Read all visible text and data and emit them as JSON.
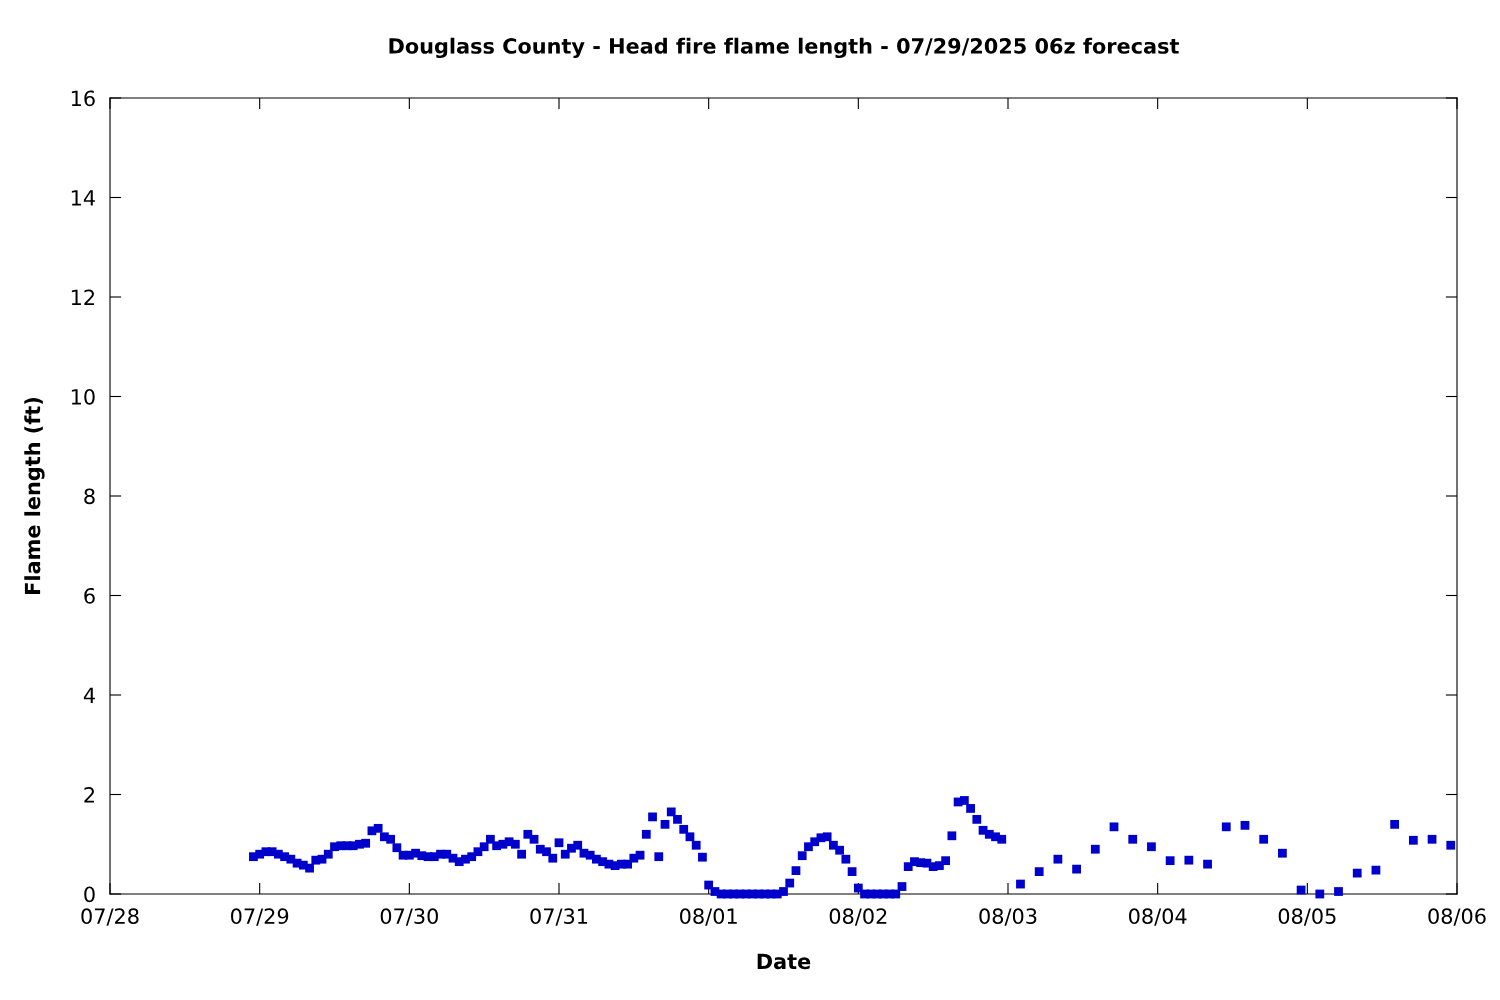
{
  "chart_data": {
    "type": "scatter",
    "title": "Douglass County - Head fire flame length - 07/29/2025 06z forecast",
    "xlabel": "Date",
    "ylabel": "Flame length (ft)",
    "marker": "square",
    "grid": false,
    "legend": false,
    "xlim": [
      "2025-07-28",
      "2025-08-06"
    ],
    "ylim": [
      0,
      16
    ],
    "xticks": [
      {
        "value": "2025-07-28",
        "label": "07/28"
      },
      {
        "value": "2025-07-29",
        "label": "07/29"
      },
      {
        "value": "2025-07-30",
        "label": "07/30"
      },
      {
        "value": "2025-07-31",
        "label": "07/31"
      },
      {
        "value": "2025-08-01",
        "label": "08/01"
      },
      {
        "value": "2025-08-02",
        "label": "08/02"
      },
      {
        "value": "2025-08-03",
        "label": "08/03"
      },
      {
        "value": "2025-08-04",
        "label": "08/04"
      },
      {
        "value": "2025-08-05",
        "label": "08/05"
      },
      {
        "value": "2025-08-06",
        "label": "08/06"
      }
    ],
    "yticks": [
      0,
      2,
      4,
      6,
      8,
      10,
      12,
      14,
      16
    ],
    "series": [
      {
        "color": "#0000cc",
        "x": [
          "2025-07-28T23:00",
          "2025-07-29T00:00",
          "2025-07-29T01:00",
          "2025-07-29T02:00",
          "2025-07-29T03:00",
          "2025-07-29T04:00",
          "2025-07-29T05:00",
          "2025-07-29T06:00",
          "2025-07-29T07:00",
          "2025-07-29T08:00",
          "2025-07-29T09:00",
          "2025-07-29T10:00",
          "2025-07-29T11:00",
          "2025-07-29T12:00",
          "2025-07-29T13:00",
          "2025-07-29T14:00",
          "2025-07-29T15:00",
          "2025-07-29T16:00",
          "2025-07-29T17:00",
          "2025-07-29T18:00",
          "2025-07-29T19:00",
          "2025-07-29T20:00",
          "2025-07-29T21:00",
          "2025-07-29T22:00",
          "2025-07-29T23:00",
          "2025-07-30T00:00",
          "2025-07-30T01:00",
          "2025-07-30T02:00",
          "2025-07-30T03:00",
          "2025-07-30T04:00",
          "2025-07-30T05:00",
          "2025-07-30T06:00",
          "2025-07-30T07:00",
          "2025-07-30T08:00",
          "2025-07-30T09:00",
          "2025-07-30T10:00",
          "2025-07-30T11:00",
          "2025-07-30T12:00",
          "2025-07-30T13:00",
          "2025-07-30T14:00",
          "2025-07-30T15:00",
          "2025-07-30T16:00",
          "2025-07-30T17:00",
          "2025-07-30T18:00",
          "2025-07-30T19:00",
          "2025-07-30T20:00",
          "2025-07-30T21:00",
          "2025-07-30T22:00",
          "2025-07-30T23:00",
          "2025-07-31T00:00",
          "2025-07-31T01:00",
          "2025-07-31T02:00",
          "2025-07-31T03:00",
          "2025-07-31T04:00",
          "2025-07-31T05:00",
          "2025-07-31T06:00",
          "2025-07-31T07:00",
          "2025-07-31T08:00",
          "2025-07-31T09:00",
          "2025-07-31T10:00",
          "2025-07-31T11:00",
          "2025-07-31T12:00",
          "2025-07-31T13:00",
          "2025-07-31T14:00",
          "2025-07-31T15:00",
          "2025-07-31T16:00",
          "2025-07-31T17:00",
          "2025-07-31T18:00",
          "2025-07-31T19:00",
          "2025-07-31T20:00",
          "2025-07-31T21:00",
          "2025-07-31T22:00",
          "2025-07-31T23:00",
          "2025-08-01T00:00",
          "2025-08-01T01:00",
          "2025-08-01T02:00",
          "2025-08-01T03:00",
          "2025-08-01T04:00",
          "2025-08-01T05:00",
          "2025-08-01T06:00",
          "2025-08-01T07:00",
          "2025-08-01T08:00",
          "2025-08-01T09:00",
          "2025-08-01T10:00",
          "2025-08-01T11:00",
          "2025-08-01T12:00",
          "2025-08-01T13:00",
          "2025-08-01T14:00",
          "2025-08-01T15:00",
          "2025-08-01T16:00",
          "2025-08-01T17:00",
          "2025-08-01T18:00",
          "2025-08-01T19:00",
          "2025-08-01T20:00",
          "2025-08-01T21:00",
          "2025-08-01T22:00",
          "2025-08-01T23:00",
          "2025-08-02T00:00",
          "2025-08-02T01:00",
          "2025-08-02T02:00",
          "2025-08-02T03:00",
          "2025-08-02T04:00",
          "2025-08-02T05:00",
          "2025-08-02T06:00",
          "2025-08-02T07:00",
          "2025-08-02T08:00",
          "2025-08-02T09:00",
          "2025-08-02T10:00",
          "2025-08-02T11:00",
          "2025-08-02T12:00",
          "2025-08-02T13:00",
          "2025-08-02T14:00",
          "2025-08-02T15:00",
          "2025-08-02T16:00",
          "2025-08-02T17:00",
          "2025-08-02T18:00",
          "2025-08-02T19:00",
          "2025-08-02T20:00",
          "2025-08-02T21:00",
          "2025-08-02T22:00",
          "2025-08-02T23:00",
          "2025-08-03T02:00",
          "2025-08-03T05:00",
          "2025-08-03T08:00",
          "2025-08-03T11:00",
          "2025-08-03T14:00",
          "2025-08-03T17:00",
          "2025-08-03T20:00",
          "2025-08-03T23:00",
          "2025-08-04T02:00",
          "2025-08-04T05:00",
          "2025-08-04T08:00",
          "2025-08-04T11:00",
          "2025-08-04T14:00",
          "2025-08-04T17:00",
          "2025-08-04T20:00",
          "2025-08-04T23:00",
          "2025-08-05T02:00",
          "2025-08-05T05:00",
          "2025-08-05T08:00",
          "2025-08-05T11:00",
          "2025-08-05T14:00",
          "2025-08-05T17:00",
          "2025-08-05T20:00",
          "2025-08-05T23:00"
        ],
        "values": [
          0.75,
          0.8,
          0.85,
          0.85,
          0.8,
          0.75,
          0.7,
          0.62,
          0.58,
          0.52,
          0.68,
          0.7,
          0.8,
          0.95,
          0.97,
          0.97,
          0.97,
          1.0,
          1.02,
          1.27,
          1.32,
          1.15,
          1.1,
          0.93,
          0.78,
          0.78,
          0.82,
          0.77,
          0.75,
          0.75,
          0.8,
          0.8,
          0.72,
          0.65,
          0.7,
          0.75,
          0.85,
          0.95,
          1.1,
          0.97,
          1.0,
          1.05,
          1.0,
          0.8,
          1.2,
          1.1,
          0.9,
          0.85,
          0.72,
          1.03,
          0.8,
          0.92,
          0.98,
          0.82,
          0.78,
          0.7,
          0.65,
          0.6,
          0.57,
          0.6,
          0.6,
          0.72,
          0.78,
          1.2,
          1.55,
          0.75,
          1.4,
          1.65,
          1.5,
          1.3,
          1.15,
          0.98,
          0.74,
          0.18,
          0.05,
          0,
          0,
          0,
          0,
          0,
          0,
          0,
          0,
          0,
          0,
          0.05,
          0.22,
          0.47,
          0.77,
          0.95,
          1.05,
          1.13,
          1.15,
          0.98,
          0.88,
          0.7,
          0.45,
          0.12,
          0,
          0,
          0,
          0,
          0,
          0,
          0.15,
          0.55,
          0.65,
          0.63,
          0.62,
          0.55,
          0.57,
          0.67,
          1.17,
          1.85,
          1.88,
          1.72,
          1.5,
          1.28,
          1.2,
          1.15,
          1.1,
          0.2,
          0.45,
          0.7,
          0.5,
          0.9,
          1.35,
          1.1,
          0.95,
          0.67,
          0.68,
          0.6,
          1.35,
          1.38,
          1.1,
          0.82,
          0.08,
          0.0,
          0.05,
          0.42,
          0.48,
          1.4,
          1.08,
          1.1,
          0.98
        ]
      }
    ]
  }
}
